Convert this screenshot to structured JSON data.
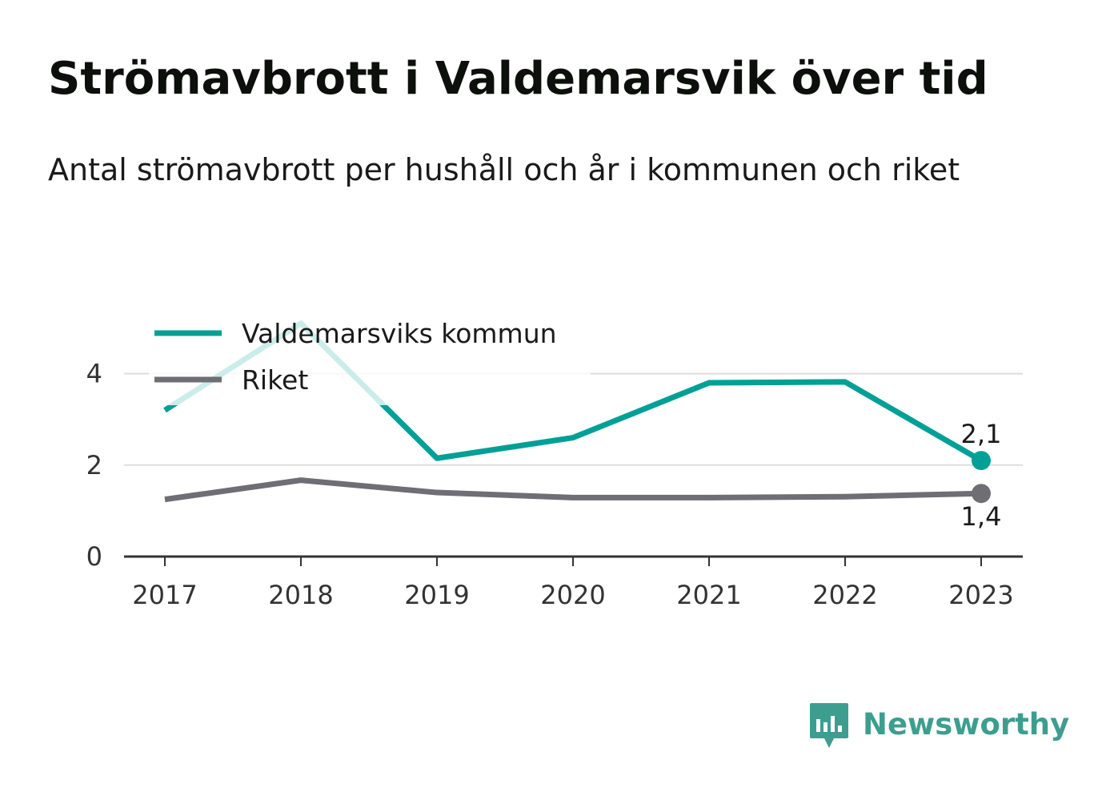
{
  "header": {
    "title": "Strömavbrott i Valdemarsvik över tid",
    "subtitle": "Antal strömavbrott per hushåll och år i kommunen och riket"
  },
  "brand": {
    "name": "Newsworthy",
    "icon": "newsworthy-logo-icon",
    "color": "#3d9e8f"
  },
  "chart_data": {
    "type": "line",
    "title": "Strömavbrott i Valdemarsvik över tid",
    "subtitle": "Antal strömavbrott per hushåll och år i kommunen och riket",
    "x": [
      "2017",
      "2018",
      "2019",
      "2020",
      "2021",
      "2022",
      "2023"
    ],
    "series": [
      {
        "name": "Valdemarsviks kommun",
        "color": "#00a096",
        "values": [
          3.2,
          5.1,
          2.15,
          2.6,
          3.8,
          3.82,
          2.1
        ],
        "end_label": "2,1"
      },
      {
        "name": "Riket",
        "color": "#6f6e75",
        "values": [
          1.25,
          1.67,
          1.4,
          1.29,
          1.29,
          1.31,
          1.38
        ],
        "end_label": "1,4"
      }
    ],
    "yticks": [
      0,
      2,
      4
    ],
    "ytick_labels": [
      "0",
      "2",
      "4"
    ],
    "ylim": [
      0,
      5.2
    ],
    "grid": true,
    "legend_position": "top-left",
    "xlabel": "",
    "ylabel": ""
  }
}
